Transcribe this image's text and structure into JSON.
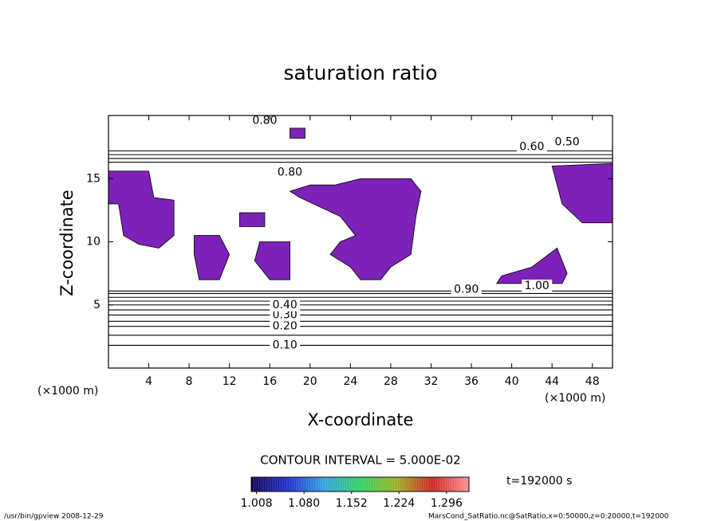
{
  "chart_data": {
    "type": "contour",
    "title": "saturation ratio",
    "xlabel": "X-coordinate",
    "ylabel": "Z-coordinate",
    "xunit": "(×1000 m)",
    "yunit": "(×1000 m)",
    "xlim": [
      0,
      50
    ],
    "xticks": [
      4,
      8,
      12,
      16,
      20,
      24,
      28,
      32,
      36,
      40,
      44,
      48
    ],
    "ylim": [
      0,
      20
    ],
    "yticks": [
      5,
      10,
      15
    ],
    "contour_z": [
      1.8,
      2.6,
      3.3,
      3.7,
      4.2,
      4.6,
      5.0,
      5.3,
      5.6,
      5.9,
      6.1,
      16.3,
      16.6,
      16.9,
      17.2
    ],
    "contour_labels": [
      {
        "text": "0.10",
        "x": 17.5,
        "z": 1.8
      },
      {
        "text": "0.20",
        "x": 17.5,
        "z": 3.3
      },
      {
        "text": "0.30",
        "x": 17.5,
        "z": 4.2
      },
      {
        "text": "0.40",
        "x": 17.5,
        "z": 5.0
      },
      {
        "text": "0.80",
        "x": 15.5,
        "z": 19.6
      },
      {
        "text": "0.60",
        "x": 42,
        "z": 17.5
      },
      {
        "text": "0.50",
        "x": 45.5,
        "z": 17.9
      },
      {
        "text": "0.80",
        "x": 18,
        "z": 15.5
      },
      {
        "text": "0.90",
        "x": 35.5,
        "z": 6.2
      },
      {
        "text": "1.00",
        "x": 42.5,
        "z": 6.5
      }
    ],
    "shade_color": "#7d22b8",
    "shaded_regions": [
      {
        "x": [
          0,
          4,
          4.5,
          6.5,
          6.5,
          5,
          3,
          1.5,
          1,
          0
        ],
        "z": [
          15.6,
          15.6,
          13.5,
          13.3,
          10.5,
          9.5,
          9.8,
          10.5,
          13,
          13
        ]
      },
      {
        "x": [
          22.5,
          25,
          30,
          31,
          30.5,
          30,
          28,
          27,
          25,
          24,
          22,
          23,
          24.5,
          23,
          19,
          18,
          20
        ],
        "z": [
          14.5,
          15,
          15,
          14,
          12,
          9,
          8,
          7,
          7,
          8,
          9,
          10,
          10.5,
          12,
          13.5,
          14,
          14.5
        ]
      },
      {
        "x": [
          8.5,
          11,
          12,
          11,
          9,
          8.5
        ],
        "z": [
          10.5,
          10.5,
          9,
          7,
          7,
          9
        ]
      },
      {
        "x": [
          15,
          18,
          18,
          16,
          14.5
        ],
        "z": [
          10,
          10,
          7,
          7,
          8.5
        ]
      },
      {
        "x": [
          44,
          50,
          50,
          47,
          45,
          44.5
        ],
        "z": [
          16,
          16.2,
          11.5,
          11.5,
          13,
          14.5
        ]
      },
      {
        "x": [
          38.5,
          45,
          45.5,
          44.5,
          42,
          39
        ],
        "z": [
          6.7,
          6.7,
          7.5,
          9.5,
          8,
          7.3
        ]
      },
      {
        "x": [
          18,
          19.5,
          19.5,
          18
        ],
        "z": [
          19,
          19,
          18.2,
          18.2
        ]
      },
      {
        "x": [
          13,
          15.5,
          15.5,
          13
        ],
        "z": [
          12.3,
          12.3,
          11.2,
          11.2
        ]
      }
    ],
    "contour_interval": "CONTOUR INTERVAL = 5.000E-02",
    "time_label": "t=192000 s",
    "colorbar": {
      "lim": [
        1.0,
        1.33
      ],
      "colors": [
        "#10004a",
        "#1a2ad0",
        "#2fa0e0",
        "#2fd060",
        "#9ab020",
        "#d02020",
        "#ff9090"
      ],
      "ticks": [
        1.008,
        {
          "value": 1.08,
          "label": "1.080"
        },
        1.152,
        1.224,
        1.296
      ]
    },
    "footer_left": "/usr/bin/gpview   2008-12-29",
    "footer_right": "MarsCond_SatRatio.nc@SatRatio,x=0:50000,z=0:20000,t=192000"
  }
}
